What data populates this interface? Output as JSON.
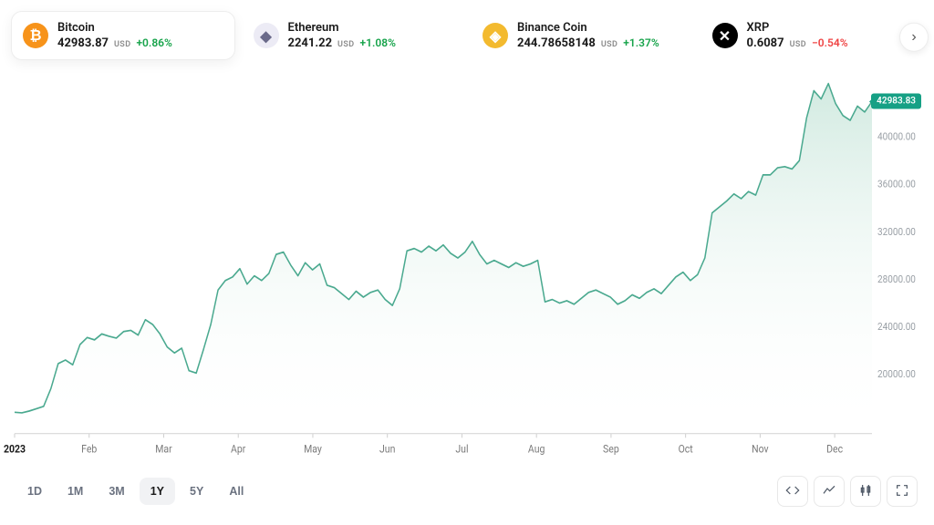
{
  "tickers": [
    {
      "id": "btc",
      "name": "Bitcoin",
      "price": "42983.87",
      "currency": "USD",
      "change": "+0.86%",
      "change_positive": true,
      "icon_bg": "#f7931a",
      "icon_fg": "#ffffff",
      "icon_glyph": "₿",
      "selected": true
    },
    {
      "id": "eth",
      "name": "Ethereum",
      "price": "2241.22",
      "currency": "USD",
      "change": "+1.08%",
      "change_positive": true,
      "icon_bg": "#ecebf5",
      "icon_fg": "#6a6a8a",
      "icon_glyph": "◆",
      "selected": false
    },
    {
      "id": "bnb",
      "name": "Binance Coin",
      "price": "244.78658148",
      "currency": "USD",
      "change": "+1.37%",
      "change_positive": true,
      "icon_bg": "#f3ba2f",
      "icon_fg": "#ffffff",
      "icon_glyph": "◈",
      "selected": false
    },
    {
      "id": "xrp",
      "name": "XRP",
      "price": "0.6087",
      "currency": "USD",
      "change": "−0.54%",
      "change_positive": false,
      "icon_bg": "#000000",
      "icon_fg": "#ffffff",
      "icon_glyph": "✕",
      "selected": false
    }
  ],
  "chart": {
    "type": "area",
    "line_color": "#4aa98f",
    "line_width": 1.5,
    "fill_top": "#cfe9df",
    "fill_bottom": "#ffffff",
    "grid_color": "#f0f0f0",
    "background_color": "#ffffff",
    "badge_bg": "#16a085",
    "badge_text": "42983.83",
    "y": {
      "min": 15000,
      "max": 45000,
      "ticks": [
        20000,
        24000,
        28000,
        32000,
        36000,
        40000
      ],
      "tick_labels": [
        "20000.00",
        "24000.00",
        "28000.00",
        "32000.00",
        "36000.00",
        "40000.00"
      ],
      "label_fontsize": 10,
      "label_color": "#9aa0a6"
    },
    "x": {
      "labels": [
        "2023",
        "Feb",
        "Mar",
        "Apr",
        "May",
        "Jun",
        "Jul",
        "Aug",
        "Sep",
        "Oct",
        "Nov",
        "Dec"
      ],
      "bold_indices": [
        0
      ],
      "label_fontsize": 10.5
    },
    "series": [
      16800,
      16750,
      16900,
      17100,
      17300,
      18800,
      20900,
      21200,
      20800,
      22500,
      23100,
      22900,
      23400,
      23200,
      23050,
      23600,
      23700,
      23300,
      24600,
      24200,
      23400,
      22300,
      21800,
      22200,
      20300,
      20100,
      22100,
      24200,
      27100,
      27900,
      28200,
      28900,
      27600,
      28300,
      27900,
      28500,
      30100,
      30300,
      29200,
      28300,
      29400,
      28800,
      29300,
      27500,
      27300,
      26800,
      26300,
      27000,
      26500,
      26900,
      27100,
      26300,
      25800,
      27200,
      30400,
      30600,
      30300,
      30800,
      30400,
      30900,
      30200,
      29800,
      30300,
      31200,
      30100,
      29300,
      29600,
      29300,
      29000,
      29400,
      29100,
      29300,
      29600,
      26100,
      26300,
      26000,
      26200,
      25900,
      26400,
      26900,
      27100,
      26800,
      26500,
      25900,
      26200,
      26700,
      26400,
      26900,
      27200,
      26800,
      27500,
      28200,
      28600,
      27900,
      28400,
      29800,
      33600,
      34100,
      34600,
      35200,
      34800,
      35400,
      35100,
      36800,
      36800,
      37400,
      37500,
      37300,
      38000,
      41600,
      43900,
      43200,
      44500,
      42800,
      41800,
      41400,
      42600,
      42100,
      42983
    ],
    "current_value": 42983.83
  },
  "ranges": {
    "options": [
      "1D",
      "1M",
      "3M",
      "1Y",
      "5Y",
      "All"
    ],
    "active": "1Y"
  },
  "tools": [
    {
      "id": "embed",
      "title": "Embed"
    },
    {
      "id": "area",
      "title": "Area chart"
    },
    {
      "id": "candles",
      "title": "Candlestick"
    },
    {
      "id": "fullscreen",
      "title": "Fullscreen"
    }
  ]
}
